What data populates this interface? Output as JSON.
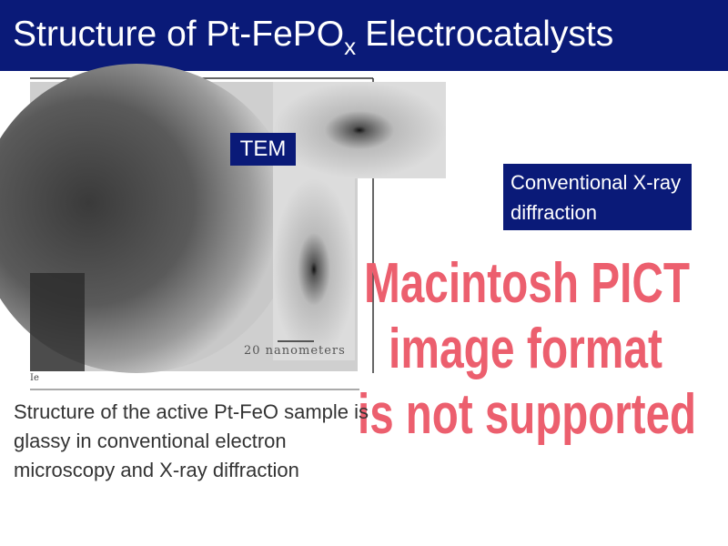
{
  "title": {
    "main": "Structure of Pt-FePO",
    "subscript": "x",
    "rest": "Electrocatalysts"
  },
  "image_labels": {
    "tem": "TEM",
    "scale_bar": "20 nanometers",
    "corner": "Ie",
    "diffraction": "Conventional X-ray diffraction"
  },
  "placeholder": [
    "Macintosh PICT",
    "image format",
    "is not supported"
  ],
  "body": "Structure of the active Pt-FeO sample is glassy in conventional electron microscopy and X-ray diffraction"
}
